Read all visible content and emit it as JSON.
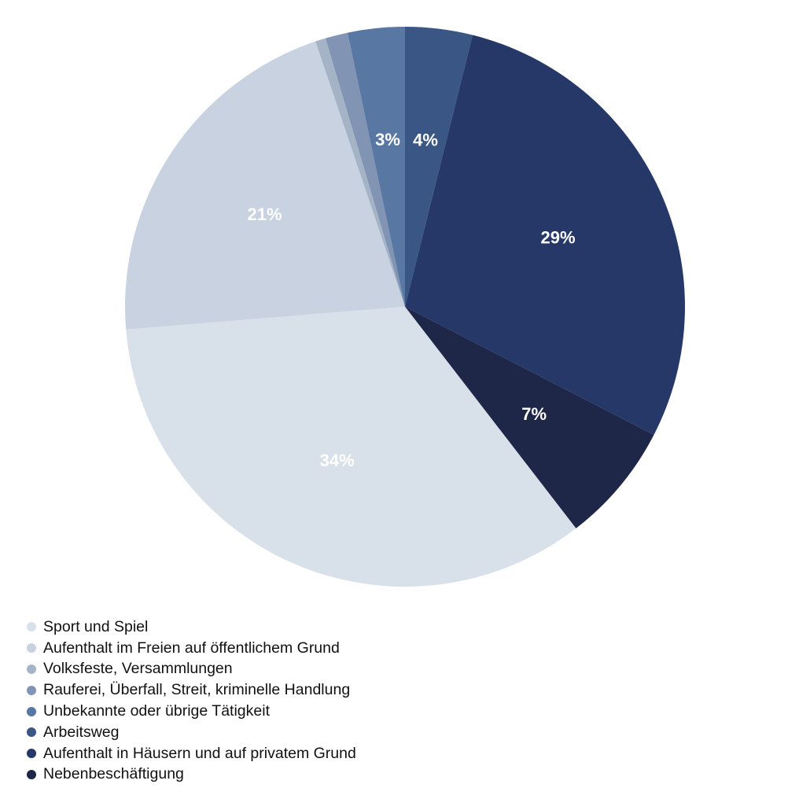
{
  "chart_data": {
    "type": "pie",
    "title": "",
    "start": "12 o'clock",
    "direction": "clockwise",
    "slice_order": [
      5,
      6,
      7,
      0,
      1,
      2,
      3,
      4
    ],
    "categories": [
      "Sport und Spiel",
      "Aufenthalt im Freien auf öffentlichem Grund",
      "Volksfeste, Versammlungen",
      "Rauferei, Überfall, Streit, kriminelle Handlung",
      "Unbekannte oder übrige Tätigkeit",
      "Arbeitsweg",
      "Aufenthalt in Häusern und auf privatem Grund",
      "Nebenbeschäftigung"
    ],
    "values": [
      34.3,
      21.2,
      0.6,
      1.3,
      3.3,
      3.9,
      28.8,
      7.0
    ],
    "data_labels": [
      "34%",
      "21%",
      "",
      "",
      "3%",
      "4%",
      "29%",
      "7%"
    ],
    "colors": [
      "#d8e0e9",
      "#c8d2e0",
      "#a5b3c6",
      "#8194b3",
      "#5977a3",
      "#395685",
      "#253868",
      "#1f2749"
    ],
    "legend": "bottom-left"
  }
}
